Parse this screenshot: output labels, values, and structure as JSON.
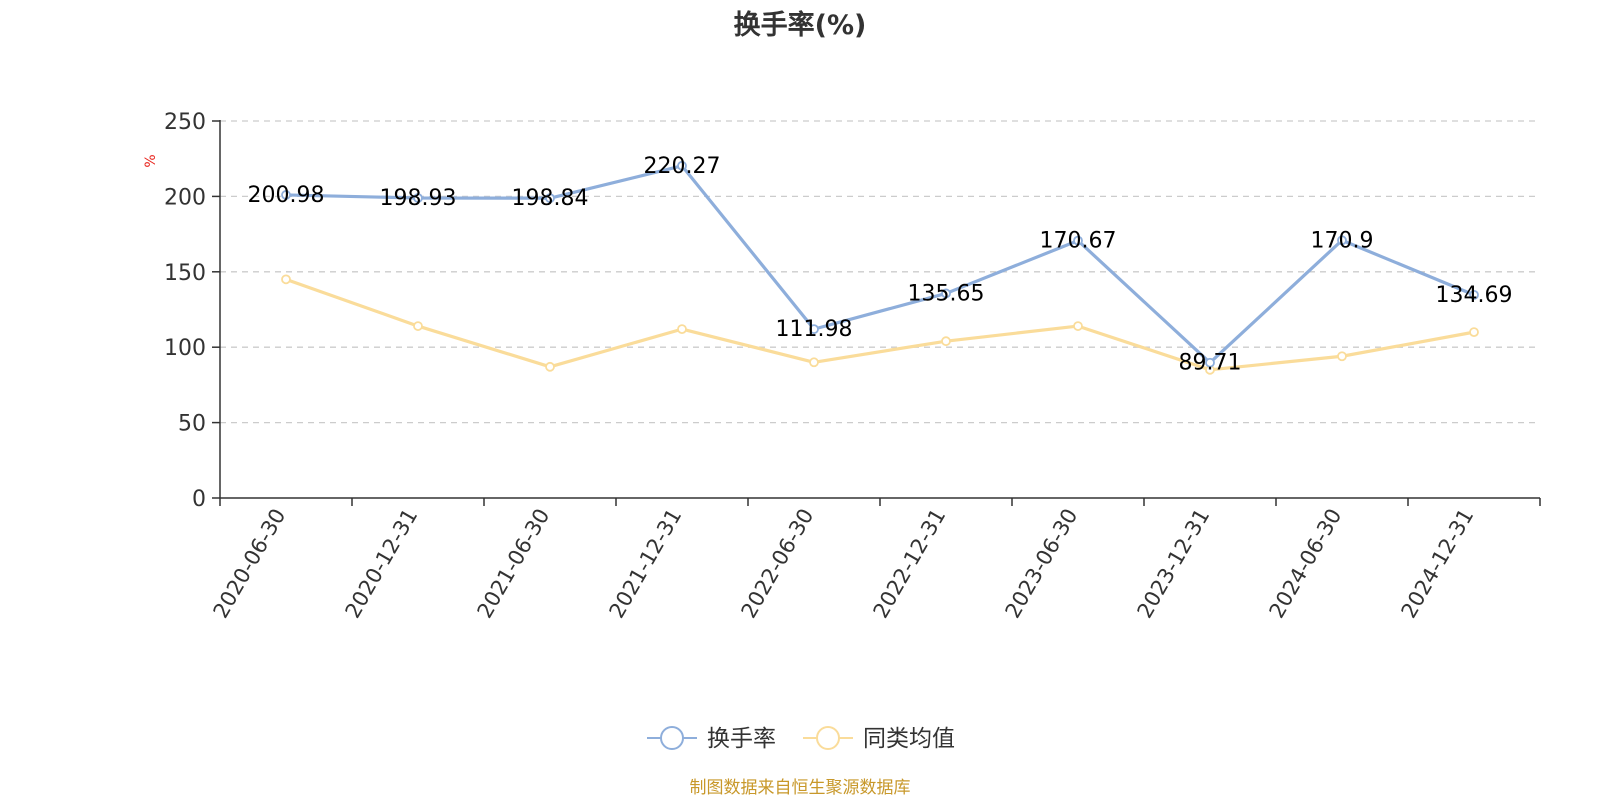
{
  "chart_data": {
    "type": "line",
    "title": "换手率(%)",
    "ylabel": "%",
    "ylim": [
      0,
      250
    ],
    "yticks": [
      "0",
      "50",
      "100",
      "150",
      "200",
      "250"
    ],
    "x": [
      "2020-06-30",
      "2020-12-31",
      "2021-06-30",
      "2021-12-31",
      "2022-06-30",
      "2022-12-31",
      "2023-06-30",
      "2023-12-31",
      "2024-06-30",
      "2024-12-31"
    ],
    "series": [
      {
        "name": "换手率",
        "color": "#8eaedb",
        "values": [
          200.98,
          198.93,
          198.84,
          220.27,
          111.98,
          135.65,
          170.67,
          89.71,
          170.9,
          134.69
        ],
        "labels": [
          "200.98",
          "198.93",
          "198.84",
          "220.27",
          "111.98",
          "135.65",
          "170.67",
          "89.71",
          "170.9",
          "134.69"
        ]
      },
      {
        "name": "同类均值",
        "color": "#fadc9a",
        "values": [
          145,
          114,
          87,
          112,
          90,
          104,
          114,
          85,
          94,
          110
        ]
      }
    ],
    "grid": true,
    "legend": "bottom-center",
    "unit_color": "#e8251e"
  },
  "source": {
    "text": "制图数据来自恒生聚源数据库",
    "color": "#c8982a"
  }
}
